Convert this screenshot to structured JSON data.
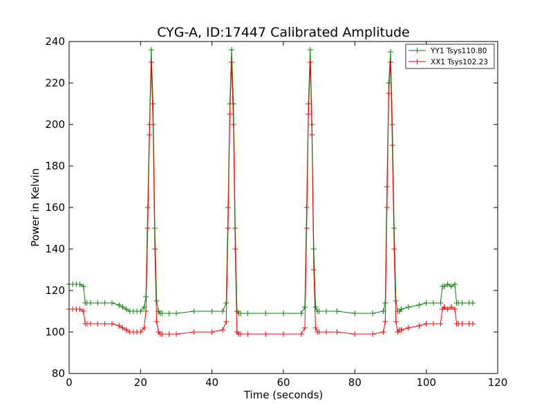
{
  "chart_data": {
    "type": "line",
    "title": "CYG-A, ID:17447 Calibrated Amplitude",
    "xlabel": "Time (seconds)",
    "ylabel": "Power in Kelvin",
    "xlim": [
      0,
      120
    ],
    "ylim": [
      80,
      240
    ],
    "xticks": [
      "0",
      "20",
      "40",
      "60",
      "80",
      "100",
      "120"
    ],
    "yticks": [
      "80",
      "100",
      "120",
      "140",
      "160",
      "180",
      "200",
      "220",
      "240"
    ],
    "grid": false,
    "legend_position": "top-right",
    "marker": "plus",
    "series": [
      {
        "name": "YY1 Tsys110.80",
        "color": "#008000",
        "x": [
          0,
          1,
          2,
          3,
          4,
          4.5,
          5,
          6,
          8,
          10,
          12,
          14,
          15,
          16,
          17,
          18,
          19,
          20,
          21,
          21.5,
          22,
          22.5,
          23,
          23.5,
          24,
          24.5,
          25,
          25.5,
          26,
          28,
          30,
          35,
          40,
          43,
          44,
          44.5,
          45,
          45.5,
          46,
          46.5,
          47,
          47.5,
          48,
          50,
          55,
          60,
          65,
          66,
          66.5,
          67,
          67.5,
          68,
          68.5,
          69,
          69.5,
          70,
          72,
          75,
          80,
          85,
          88,
          88.5,
          89,
          89.5,
          90,
          90.5,
          91,
          91.5,
          92,
          92.5,
          93,
          95,
          98,
          100,
          102,
          104,
          104.5,
          105,
          106,
          107,
          108,
          108.5,
          109,
          110,
          112,
          113
        ],
        "y": [
          123,
          123,
          123,
          123,
          122,
          114,
          114,
          114,
          114,
          114,
          114,
          113,
          112,
          111,
          110,
          110,
          110,
          110,
          112,
          117,
          160,
          200,
          236,
          210,
          150,
          115,
          110,
          109,
          109,
          109,
          109,
          110,
          110,
          110,
          114,
          160,
          210,
          236,
          210,
          150,
          110,
          109,
          109,
          109,
          109,
          109,
          109,
          112,
          160,
          210,
          236,
          200,
          140,
          112,
          110,
          110,
          110,
          110,
          109,
          109,
          110,
          114,
          170,
          220,
          235,
          200,
          150,
          115,
          110,
          110,
          111,
          112,
          113,
          114,
          114,
          114,
          122,
          122,
          123,
          122,
          123,
          114,
          114,
          114,
          114,
          114
        ]
      },
      {
        "name": "XX1 Tsys102.23",
        "color": "#ff0000",
        "x": [
          0,
          1,
          2,
          3,
          4,
          4.5,
          5,
          6,
          8,
          10,
          12,
          14,
          15,
          16,
          17,
          18,
          19,
          20,
          21,
          21.5,
          22,
          22.5,
          23,
          23.5,
          24,
          24.5,
          25,
          25.5,
          26,
          28,
          30,
          35,
          40,
          43,
          44,
          44.5,
          45,
          45.5,
          46,
          46.5,
          47,
          47.5,
          48,
          50,
          55,
          60,
          65,
          66,
          66.5,
          67,
          67.5,
          68,
          68.5,
          69,
          69.5,
          70,
          72,
          75,
          80,
          85,
          88,
          88.5,
          89,
          89.5,
          90,
          90.5,
          91,
          91.5,
          92,
          92.5,
          93,
          95,
          98,
          100,
          102,
          104,
          104.5,
          105,
          106,
          107,
          108,
          108.5,
          109,
          110,
          112,
          113
        ],
        "y": [
          111,
          111,
          111,
          111,
          110,
          104,
          104,
          104,
          104,
          104,
          104,
          103,
          102,
          101,
          100,
          100,
          100,
          100,
          102,
          110,
          150,
          195,
          230,
          200,
          140,
          105,
          100,
          99,
          99,
          99,
          99,
          100,
          100,
          101,
          105,
          150,
          205,
          230,
          200,
          140,
          100,
          99,
          99,
          99,
          99,
          99,
          99,
          102,
          150,
          205,
          230,
          195,
          130,
          102,
          100,
          100,
          100,
          100,
          99,
          99,
          100,
          105,
          160,
          215,
          230,
          190,
          140,
          105,
          100,
          101,
          101,
          102,
          103,
          104,
          104,
          104,
          111,
          112,
          111,
          112,
          111,
          104,
          104,
          104,
          104,
          104
        ]
      }
    ]
  }
}
